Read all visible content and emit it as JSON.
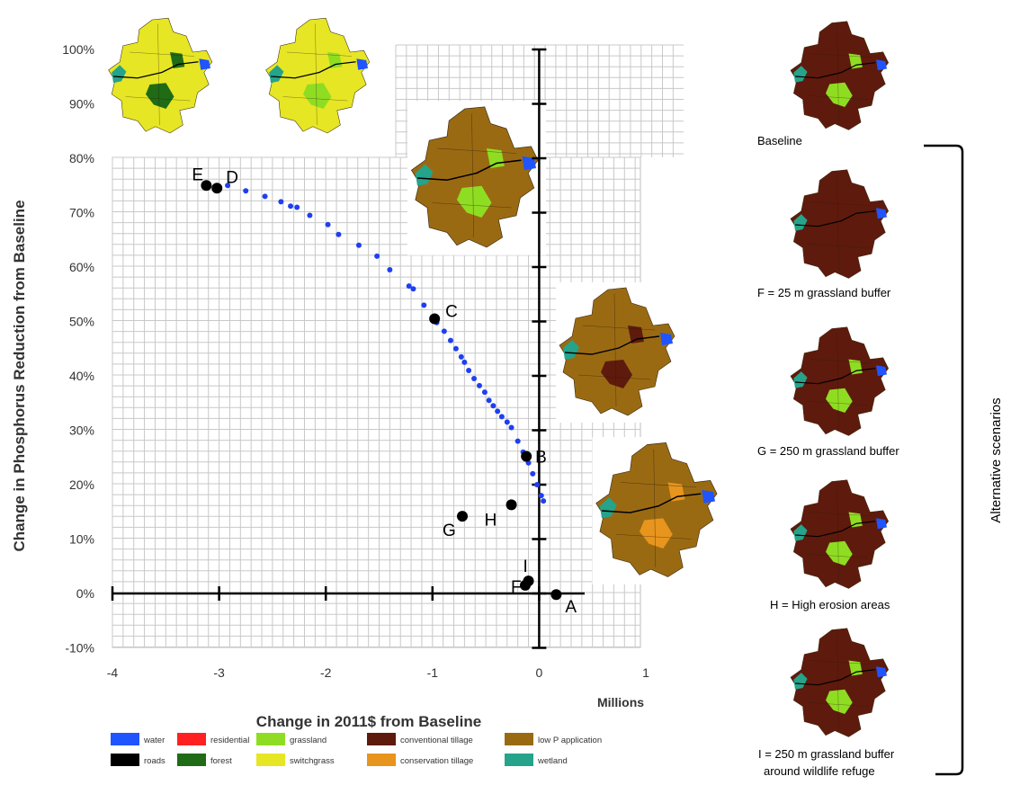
{
  "chart_data": {
    "type": "scatter",
    "xlabel": "Change in 2011$ from Baseline",
    "x_unit_label": "Millions",
    "ylabel": "Change in Phosphorus Reduction from Baseline",
    "xlim": [
      -4,
      1
    ],
    "ylim": [
      -10,
      100
    ],
    "x_ticks": [
      "-4",
      "-3",
      "-2",
      "-1",
      "0",
      "1"
    ],
    "y_ticks": [
      "-10%",
      "0%",
      "10%",
      "20%",
      "30%",
      "40%",
      "50%",
      "60%",
      "70%",
      "80%",
      "90%",
      "100%"
    ],
    "grid": true,
    "frontier": {
      "color": "#1f3ff0",
      "x": [
        -2.92,
        -2.75,
        -2.57,
        -2.42,
        -2.33,
        -2.27,
        -2.15,
        -1.98,
        -1.88,
        -1.69,
        -1.52,
        -1.4,
        -1.22,
        -1.18,
        -1.08,
        -0.96,
        -0.89,
        -0.83,
        -0.78,
        -0.73,
        -0.7,
        -0.66,
        -0.61,
        -0.56,
        -0.51,
        -0.47,
        -0.43,
        -0.39,
        -0.35,
        -0.3,
        -0.26,
        -0.2,
        -0.15,
        -0.1,
        -0.06,
        -0.02,
        0.02,
        0.04
      ],
      "y": [
        75.0,
        74.0,
        73.0,
        72.0,
        71.2,
        71.0,
        69.5,
        67.8,
        66.0,
        64.0,
        62.0,
        59.5,
        56.5,
        56.0,
        53.0,
        49.8,
        48.2,
        46.5,
        45.0,
        43.5,
        42.5,
        41.0,
        39.5,
        38.2,
        37.0,
        35.5,
        34.5,
        33.5,
        32.5,
        31.5,
        30.5,
        28.0,
        26.0,
        24.0,
        22.0,
        20.0,
        18.0,
        17.0
      ]
    },
    "scenarios": [
      {
        "label": "A",
        "x": 0.16,
        "y": -0.2
      },
      {
        "label": "B",
        "x": -0.12,
        "y": 25.2
      },
      {
        "label": "C",
        "x": -0.98,
        "y": 50.5
      },
      {
        "label": "D",
        "x": -3.02,
        "y": 74.5
      },
      {
        "label": "E",
        "x": -3.12,
        "y": 75.0
      },
      {
        "label": "F",
        "x": -0.13,
        "y": 1.5
      },
      {
        "label": "G",
        "x": -0.72,
        "y": 14.2
      },
      {
        "label": "H",
        "x": -0.26,
        "y": 16.3
      },
      {
        "label": "I",
        "x": -0.1,
        "y": 2.3
      }
    ],
    "legend": [
      {
        "label": "water",
        "color": "#1f54ff"
      },
      {
        "label": "residential",
        "color": "#ff2121"
      },
      {
        "label": "grassland",
        "color": "#8fdd22"
      },
      {
        "label": "conventional tillage",
        "color": "#5e1a0c"
      },
      {
        "label": "low P application",
        "color": "#9a6a13"
      },
      {
        "label": "roads",
        "color": "#000000"
      },
      {
        "label": "forest",
        "color": "#1f6b16"
      },
      {
        "label": "switchgrass",
        "color": "#e6e624"
      },
      {
        "label": "conservation tillage",
        "color": "#e8951d"
      },
      {
        "label": "wetland",
        "color": "#25a38b"
      }
    ],
    "legend_placement": "bottom"
  },
  "side_panel": {
    "captions": [
      "Baseline",
      "F = 25 m grassland buffer",
      "G = 250 m grassland buffer",
      "H = High erosion areas",
      "I = 250 m grassland buffer",
      "around  wildlife refuge"
    ],
    "bracket_label": "Alternative scenarios"
  },
  "colors": {
    "axis": "#000000",
    "grid": "#c8c8c8",
    "point": "#000000",
    "panel_border": "#e0e0e0"
  }
}
